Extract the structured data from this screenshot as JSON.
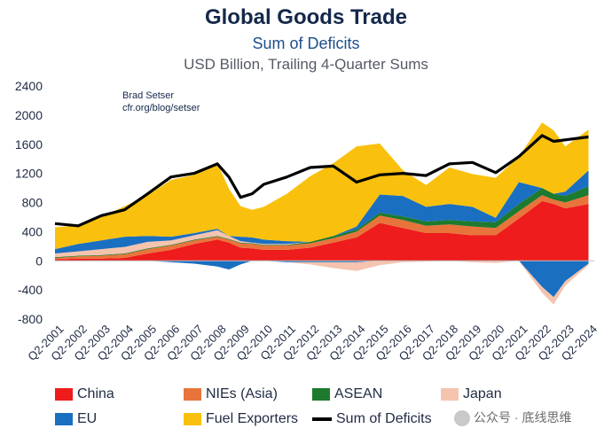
{
  "title": "Global Goods Trade",
  "subtitle": "Sum of Deficits",
  "units": "USD Billion, Trailing 4-Quarter Sums",
  "credit": {
    "author": "Brad Setser",
    "site": "cfr.org/blog/setser"
  },
  "watermark": "公众号 · 底线思维",
  "colors": {
    "China": "#ee1c1c",
    "NIEs (Asia)": "#e8743b",
    "ASEAN": "#1d7a2e",
    "Japan": "#f5c4ae",
    "EU": "#1a6fc1",
    "Fuel Exporters": "#f9c10d",
    "Sum of Deficits": "#000000"
  },
  "chart_data": {
    "type": "area",
    "title": "Global Goods Trade",
    "ylim": [
      -800,
      2400
    ],
    "y_ticks": [
      "2400",
      "2000",
      "1600",
      "1200",
      "800",
      "400",
      "0",
      "-400",
      "-800"
    ],
    "x_ticks": [
      "Q2-2001",
      "Q2-2002",
      "Q2-2003",
      "Q2-2004",
      "Q2-2005",
      "Q2-2006",
      "Q2-2007",
      "Q2-2008",
      "Q2-2009",
      "Q2-2010",
      "Q2-2011",
      "Q2-2012",
      "Q2-2013",
      "Q2-2014",
      "Q2-2015",
      "Q2-2016",
      "Q2-2017",
      "Q2-2018",
      "Q2-2019",
      "Q2-2020",
      "Q2-2021",
      "Q2-2022",
      "Q2-2023",
      "Q2-2024"
    ],
    "x": [
      2001,
      2002,
      2003,
      2004,
      2005,
      2006,
      2007,
      2008,
      2008.5,
      2009,
      2009.5,
      2010,
      2011,
      2012,
      2013,
      2014,
      2015,
      2016,
      2017,
      2018,
      2019,
      2020,
      2021,
      2022,
      2022.5,
      2023,
      2024
    ],
    "series": [
      {
        "name": "China",
        "values": [
          20,
          30,
          30,
          40,
          100,
          150,
          230,
          290,
          250,
          180,
          170,
          150,
          150,
          180,
          250,
          320,
          520,
          450,
          380,
          380,
          350,
          350,
          580,
          820,
          780,
          720,
          780
        ]
      },
      {
        "name": "NIEs (Asia)",
        "values": [
          20,
          30,
          40,
          50,
          60,
          60,
          50,
          40,
          40,
          60,
          60,
          60,
          60,
          60,
          60,
          80,
          100,
          110,
          100,
          120,
          120,
          100,
          100,
          80,
          60,
          80,
          120
        ]
      },
      {
        "name": "ASEAN",
        "values": [
          10,
          10,
          10,
          10,
          10,
          10,
          10,
          10,
          10,
          10,
          10,
          10,
          10,
          20,
          30,
          30,
          40,
          50,
          60,
          60,
          70,
          80,
          100,
          100,
          80,
          90,
          120
        ]
      },
      {
        "name": "Japan",
        "values": [
          50,
          60,
          80,
          90,
          90,
          60,
          60,
          80,
          40,
          20,
          10,
          10,
          10,
          0,
          0,
          0,
          0,
          0,
          0,
          0,
          0,
          0,
          0,
          0,
          0,
          0,
          0
        ]
      },
      {
        "name": "EU",
        "values": [
          60,
          100,
          120,
          140,
          80,
          50,
          30,
          20,
          0,
          60,
          70,
          60,
          40,
          0,
          0,
          40,
          250,
          280,
          200,
          220,
          200,
          60,
          300,
          0,
          0,
          60,
          220
        ]
      },
      {
        "name": "Fuel Exporters",
        "values": [
          300,
          250,
          320,
          420,
          560,
          780,
          800,
          900,
          650,
          420,
          380,
          450,
          650,
          900,
          1000,
          1100,
          700,
          350,
          300,
          500,
          450,
          550,
          350,
          900,
          870,
          620,
          560
        ]
      }
    ],
    "negative_series": [
      {
        "name": "EU",
        "values": [
          0,
          0,
          0,
          0,
          0,
          -20,
          -40,
          -80,
          -120,
          -50,
          0,
          0,
          -20,
          -20,
          -20,
          -20,
          0,
          0,
          0,
          0,
          0,
          0,
          0,
          -360,
          -500,
          -280,
          -40
        ]
      },
      {
        "name": "Japan",
        "values": [
          0,
          0,
          0,
          0,
          0,
          0,
          0,
          0,
          0,
          0,
          0,
          0,
          0,
          -30,
          -80,
          -120,
          -60,
          -20,
          -10,
          0,
          -20,
          -30,
          0,
          -80,
          -100,
          -60,
          -20
        ]
      }
    ],
    "line": {
      "name": "Sum of Deficits",
      "values": [
        510,
        480,
        620,
        700,
        920,
        1150,
        1200,
        1330,
        1150,
        870,
        920,
        1050,
        1150,
        1280,
        1300,
        1080,
        1180,
        1200,
        1170,
        1330,
        1350,
        1210,
        1430,
        1720,
        1640,
        1660,
        1700
      ]
    },
    "legend": [
      "China",
      "NIEs (Asia)",
      "ASEAN",
      "Japan",
      "EU",
      "Fuel Exporters",
      "Sum of Deficits"
    ],
    "legend_position": "bottom",
    "grid": false
  }
}
